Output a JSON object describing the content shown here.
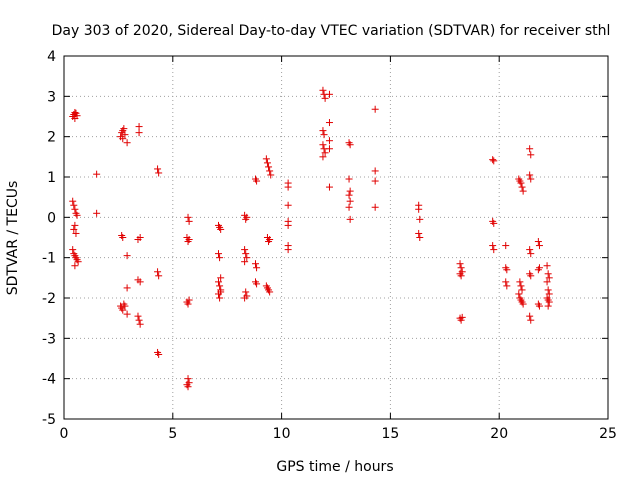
{
  "chart_data": {
    "type": "scatter",
    "title": "Day 303 of 2020, Sidereal Day-to-day VTEC variation (SDTVAR) for receiver sthl",
    "xlabel": "GPS time / hours",
    "ylabel": "SDTVAR / TECUs",
    "xlim": [
      0,
      25
    ],
    "ylim": [
      -5,
      4
    ],
    "xticks": [
      "0",
      "5",
      "10",
      "15",
      "20",
      "25"
    ],
    "yticks": [
      "-5",
      "-4",
      "-3",
      "-2",
      "-1",
      "0",
      "1",
      "2",
      "3",
      "4"
    ],
    "grid": true,
    "marker": "plus",
    "color": "#e00000",
    "series": [
      {
        "name": "sthl",
        "points": [
          [
            0.4,
            2.5
          ],
          [
            0.45,
            2.55
          ],
          [
            0.5,
            2.6
          ],
          [
            0.55,
            2.58
          ],
          [
            0.6,
            2.52
          ],
          [
            0.5,
            2.45
          ],
          [
            0.4,
            0.4
          ],
          [
            0.45,
            0.3
          ],
          [
            0.5,
            0.2
          ],
          [
            0.55,
            0.1
          ],
          [
            0.6,
            0.05
          ],
          [
            0.5,
            -0.2
          ],
          [
            0.45,
            -0.3
          ],
          [
            0.55,
            -0.4
          ],
          [
            0.4,
            -0.8
          ],
          [
            0.45,
            -0.9
          ],
          [
            0.5,
            -0.95
          ],
          [
            0.55,
            -1.0
          ],
          [
            0.6,
            -1.05
          ],
          [
            0.65,
            -1.1
          ],
          [
            0.5,
            -1.2
          ],
          [
            1.5,
            1.07
          ],
          [
            1.5,
            0.1
          ],
          [
            2.6,
            2.0
          ],
          [
            2.65,
            2.1
          ],
          [
            2.7,
            2.15
          ],
          [
            2.75,
            2.2
          ],
          [
            2.8,
            2.05
          ],
          [
            2.7,
            1.95
          ],
          [
            2.65,
            -0.45
          ],
          [
            2.7,
            -0.5
          ],
          [
            2.6,
            -2.2
          ],
          [
            2.65,
            -2.25
          ],
          [
            2.7,
            -2.3
          ],
          [
            2.75,
            -2.15
          ],
          [
            2.8,
            -2.2
          ],
          [
            2.9,
            1.85
          ],
          [
            2.9,
            -0.95
          ],
          [
            2.9,
            -1.75
          ],
          [
            2.9,
            -2.4
          ],
          [
            3.45,
            2.1
          ],
          [
            3.45,
            2.25
          ],
          [
            3.4,
            -0.55
          ],
          [
            3.5,
            -0.5
          ],
          [
            3.4,
            -1.55
          ],
          [
            3.5,
            -1.6
          ],
          [
            3.4,
            -2.45
          ],
          [
            3.45,
            -2.55
          ],
          [
            3.5,
            -2.65
          ],
          [
            4.3,
            1.2
          ],
          [
            4.35,
            1.1
          ],
          [
            4.3,
            -1.35
          ],
          [
            4.35,
            -1.45
          ],
          [
            4.3,
            -3.35
          ],
          [
            4.35,
            -3.4
          ],
          [
            5.7,
            0.0
          ],
          [
            5.75,
            -0.1
          ],
          [
            5.65,
            -0.5
          ],
          [
            5.7,
            -0.6
          ],
          [
            5.75,
            -0.55
          ],
          [
            5.65,
            -2.1
          ],
          [
            5.7,
            -2.15
          ],
          [
            5.75,
            -2.05
          ],
          [
            5.7,
            -4.0
          ],
          [
            5.75,
            -4.1
          ],
          [
            5.65,
            -4.15
          ],
          [
            5.7,
            -4.2
          ],
          [
            7.1,
            -0.2
          ],
          [
            7.15,
            -0.25
          ],
          [
            7.2,
            -0.3
          ],
          [
            7.1,
            -0.9
          ],
          [
            7.15,
            -1.0
          ],
          [
            7.2,
            -1.5
          ],
          [
            7.1,
            -1.6
          ],
          [
            7.15,
            -1.7
          ],
          [
            7.2,
            -1.8
          ],
          [
            7.1,
            -1.9
          ],
          [
            7.15,
            -2.0
          ],
          [
            7.2,
            -1.85
          ],
          [
            8.3,
            0.05
          ],
          [
            8.35,
            -0.05
          ],
          [
            8.4,
            0.0
          ],
          [
            8.3,
            -0.8
          ],
          [
            8.35,
            -0.9
          ],
          [
            8.4,
            -1.0
          ],
          [
            8.3,
            -1.1
          ],
          [
            8.35,
            -1.85
          ],
          [
            8.4,
            -1.95
          ],
          [
            8.3,
            -2.0
          ],
          [
            8.8,
            0.95
          ],
          [
            8.85,
            0.9
          ],
          [
            8.8,
            -1.15
          ],
          [
            8.85,
            -1.25
          ],
          [
            8.8,
            -1.6
          ],
          [
            8.85,
            -1.65
          ],
          [
            9.3,
            1.45
          ],
          [
            9.35,
            1.35
          ],
          [
            9.4,
            1.25
          ],
          [
            9.45,
            1.15
          ],
          [
            9.5,
            1.05
          ],
          [
            9.35,
            -0.5
          ],
          [
            9.4,
            -0.6
          ],
          [
            9.45,
            -0.55
          ],
          [
            9.3,
            -1.7
          ],
          [
            9.35,
            -1.75
          ],
          [
            9.4,
            -1.8
          ],
          [
            9.45,
            -1.85
          ],
          [
            10.3,
            0.85
          ],
          [
            10.3,
            0.75
          ],
          [
            10.3,
            0.3
          ],
          [
            10.3,
            -0.1
          ],
          [
            10.3,
            -0.2
          ],
          [
            10.3,
            -0.7
          ],
          [
            10.3,
            -0.8
          ],
          [
            11.9,
            3.15
          ],
          [
            11.95,
            3.05
          ],
          [
            12.0,
            2.95
          ],
          [
            11.9,
            2.15
          ],
          [
            11.95,
            2.05
          ],
          [
            11.9,
            1.8
          ],
          [
            11.95,
            1.7
          ],
          [
            12.0,
            1.6
          ],
          [
            11.9,
            1.5
          ],
          [
            12.2,
            3.05
          ],
          [
            12.2,
            2.35
          ],
          [
            12.2,
            1.9
          ],
          [
            12.2,
            1.7
          ],
          [
            12.2,
            0.75
          ],
          [
            13.1,
            1.85
          ],
          [
            13.15,
            1.8
          ],
          [
            13.1,
            0.95
          ],
          [
            13.15,
            0.65
          ],
          [
            13.1,
            0.55
          ],
          [
            13.15,
            0.4
          ],
          [
            13.1,
            0.25
          ],
          [
            13.15,
            -0.05
          ],
          [
            14.3,
            2.68
          ],
          [
            14.3,
            1.15
          ],
          [
            14.3,
            0.9
          ],
          [
            14.3,
            0.25
          ],
          [
            16.3,
            0.3
          ],
          [
            16.3,
            0.2
          ],
          [
            16.35,
            -0.05
          ],
          [
            16.3,
            -0.4
          ],
          [
            16.35,
            -0.5
          ],
          [
            18.2,
            -1.15
          ],
          [
            18.25,
            -1.25
          ],
          [
            18.3,
            -1.35
          ],
          [
            18.2,
            -1.4
          ],
          [
            18.25,
            -1.45
          ],
          [
            18.2,
            -2.5
          ],
          [
            18.25,
            -2.55
          ],
          [
            18.3,
            -2.48
          ],
          [
            19.7,
            1.43
          ],
          [
            19.75,
            1.4
          ],
          [
            19.7,
            -0.1
          ],
          [
            19.75,
            -0.15
          ],
          [
            19.7,
            -0.7
          ],
          [
            19.75,
            -0.8
          ],
          [
            20.3,
            -0.7
          ],
          [
            20.3,
            -1.25
          ],
          [
            20.35,
            -1.3
          ],
          [
            20.3,
            -1.6
          ],
          [
            20.35,
            -1.7
          ],
          [
            20.9,
            0.95
          ],
          [
            20.95,
            0.9
          ],
          [
            21.0,
            0.85
          ],
          [
            21.05,
            0.75
          ],
          [
            21.1,
            0.65
          ],
          [
            20.95,
            -1.6
          ],
          [
            21.0,
            -1.7
          ],
          [
            21.05,
            -1.8
          ],
          [
            20.9,
            -1.9
          ],
          [
            20.95,
            -2.0
          ],
          [
            21.0,
            -2.05
          ],
          [
            21.05,
            -2.1
          ],
          [
            21.1,
            -2.15
          ],
          [
            21.4,
            1.7
          ],
          [
            21.45,
            1.55
          ],
          [
            21.4,
            1.05
          ],
          [
            21.45,
            0.95
          ],
          [
            21.4,
            -0.8
          ],
          [
            21.45,
            -0.9
          ],
          [
            21.4,
            -1.4
          ],
          [
            21.45,
            -1.45
          ],
          [
            21.4,
            -2.45
          ],
          [
            21.45,
            -2.55
          ],
          [
            21.8,
            -0.6
          ],
          [
            21.85,
            -0.7
          ],
          [
            21.8,
            -1.3
          ],
          [
            21.85,
            -1.25
          ],
          [
            21.8,
            -2.15
          ],
          [
            21.85,
            -2.2
          ],
          [
            22.2,
            -1.2
          ],
          [
            22.25,
            -1.4
          ],
          [
            22.3,
            -1.5
          ],
          [
            22.2,
            -1.6
          ],
          [
            22.25,
            -1.8
          ],
          [
            22.3,
            -1.9
          ],
          [
            22.2,
            -2.0
          ],
          [
            22.25,
            -2.05
          ],
          [
            22.3,
            -2.1
          ],
          [
            22.25,
            -2.2
          ]
        ]
      }
    ]
  }
}
